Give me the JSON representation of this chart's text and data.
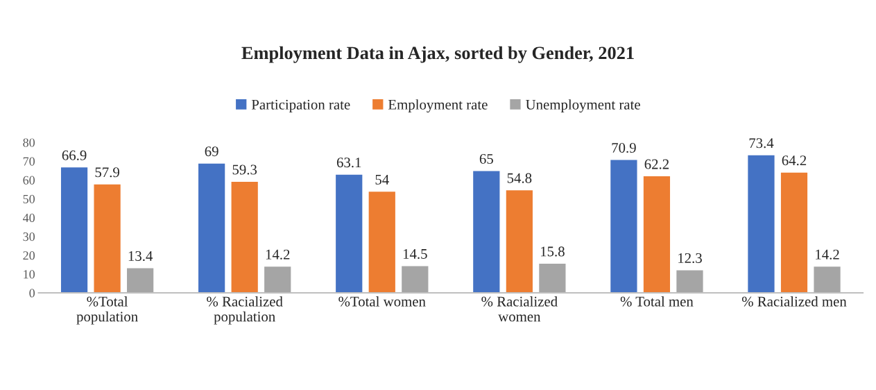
{
  "chart_data": {
    "type": "bar",
    "title": "Employment Data in Ajax, sorted by Gender, 2021",
    "categories": [
      "%Total\npopulation",
      "% Racialized\npopulation",
      "%Total women",
      "% Racialized\nwomen",
      "% Total men",
      "% Racialized men"
    ],
    "series": [
      {
        "name": "Participation rate",
        "color": "#4472c4",
        "values": [
          66.9,
          69,
          63.1,
          65,
          70.9,
          73.4
        ]
      },
      {
        "name": "Employment rate",
        "color": "#ed7d31",
        "values": [
          57.9,
          59.3,
          54,
          54.8,
          62.2,
          64.2
        ]
      },
      {
        "name": "Unemployment rate",
        "color": "#a5a5a5",
        "values": [
          13.4,
          14.2,
          14.5,
          15.8,
          12.3,
          14.2
        ]
      }
    ],
    "ylim": [
      0,
      80
    ],
    "yticks": [
      0,
      10,
      20,
      30,
      40,
      50,
      60,
      70,
      80
    ],
    "data_labels": true,
    "legend": "top",
    "grid": false
  }
}
